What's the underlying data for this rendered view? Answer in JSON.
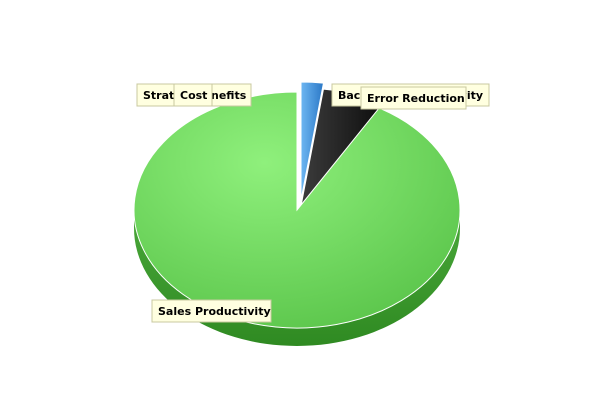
{
  "chart_data": {
    "type": "pie",
    "title": "",
    "categories": [
      "Strategic Benefits",
      "Cost",
      "Back Office Productivity",
      "Error Reduction",
      "Sales Productivity"
    ],
    "values": [
      0,
      0,
      2.2,
      6.2,
      91.6
    ],
    "colors": [
      "#e0c040",
      "#e06060",
      "#3a8fdb",
      "#1a1a1a",
      "#6fd35f"
    ],
    "three_d": true,
    "labels_shown": [
      "Strate",
      "Cost",
      "nefits",
      "Back",
      "Office Productivity",
      "Error Reduction",
      "Sales Productivity"
    ]
  }
}
